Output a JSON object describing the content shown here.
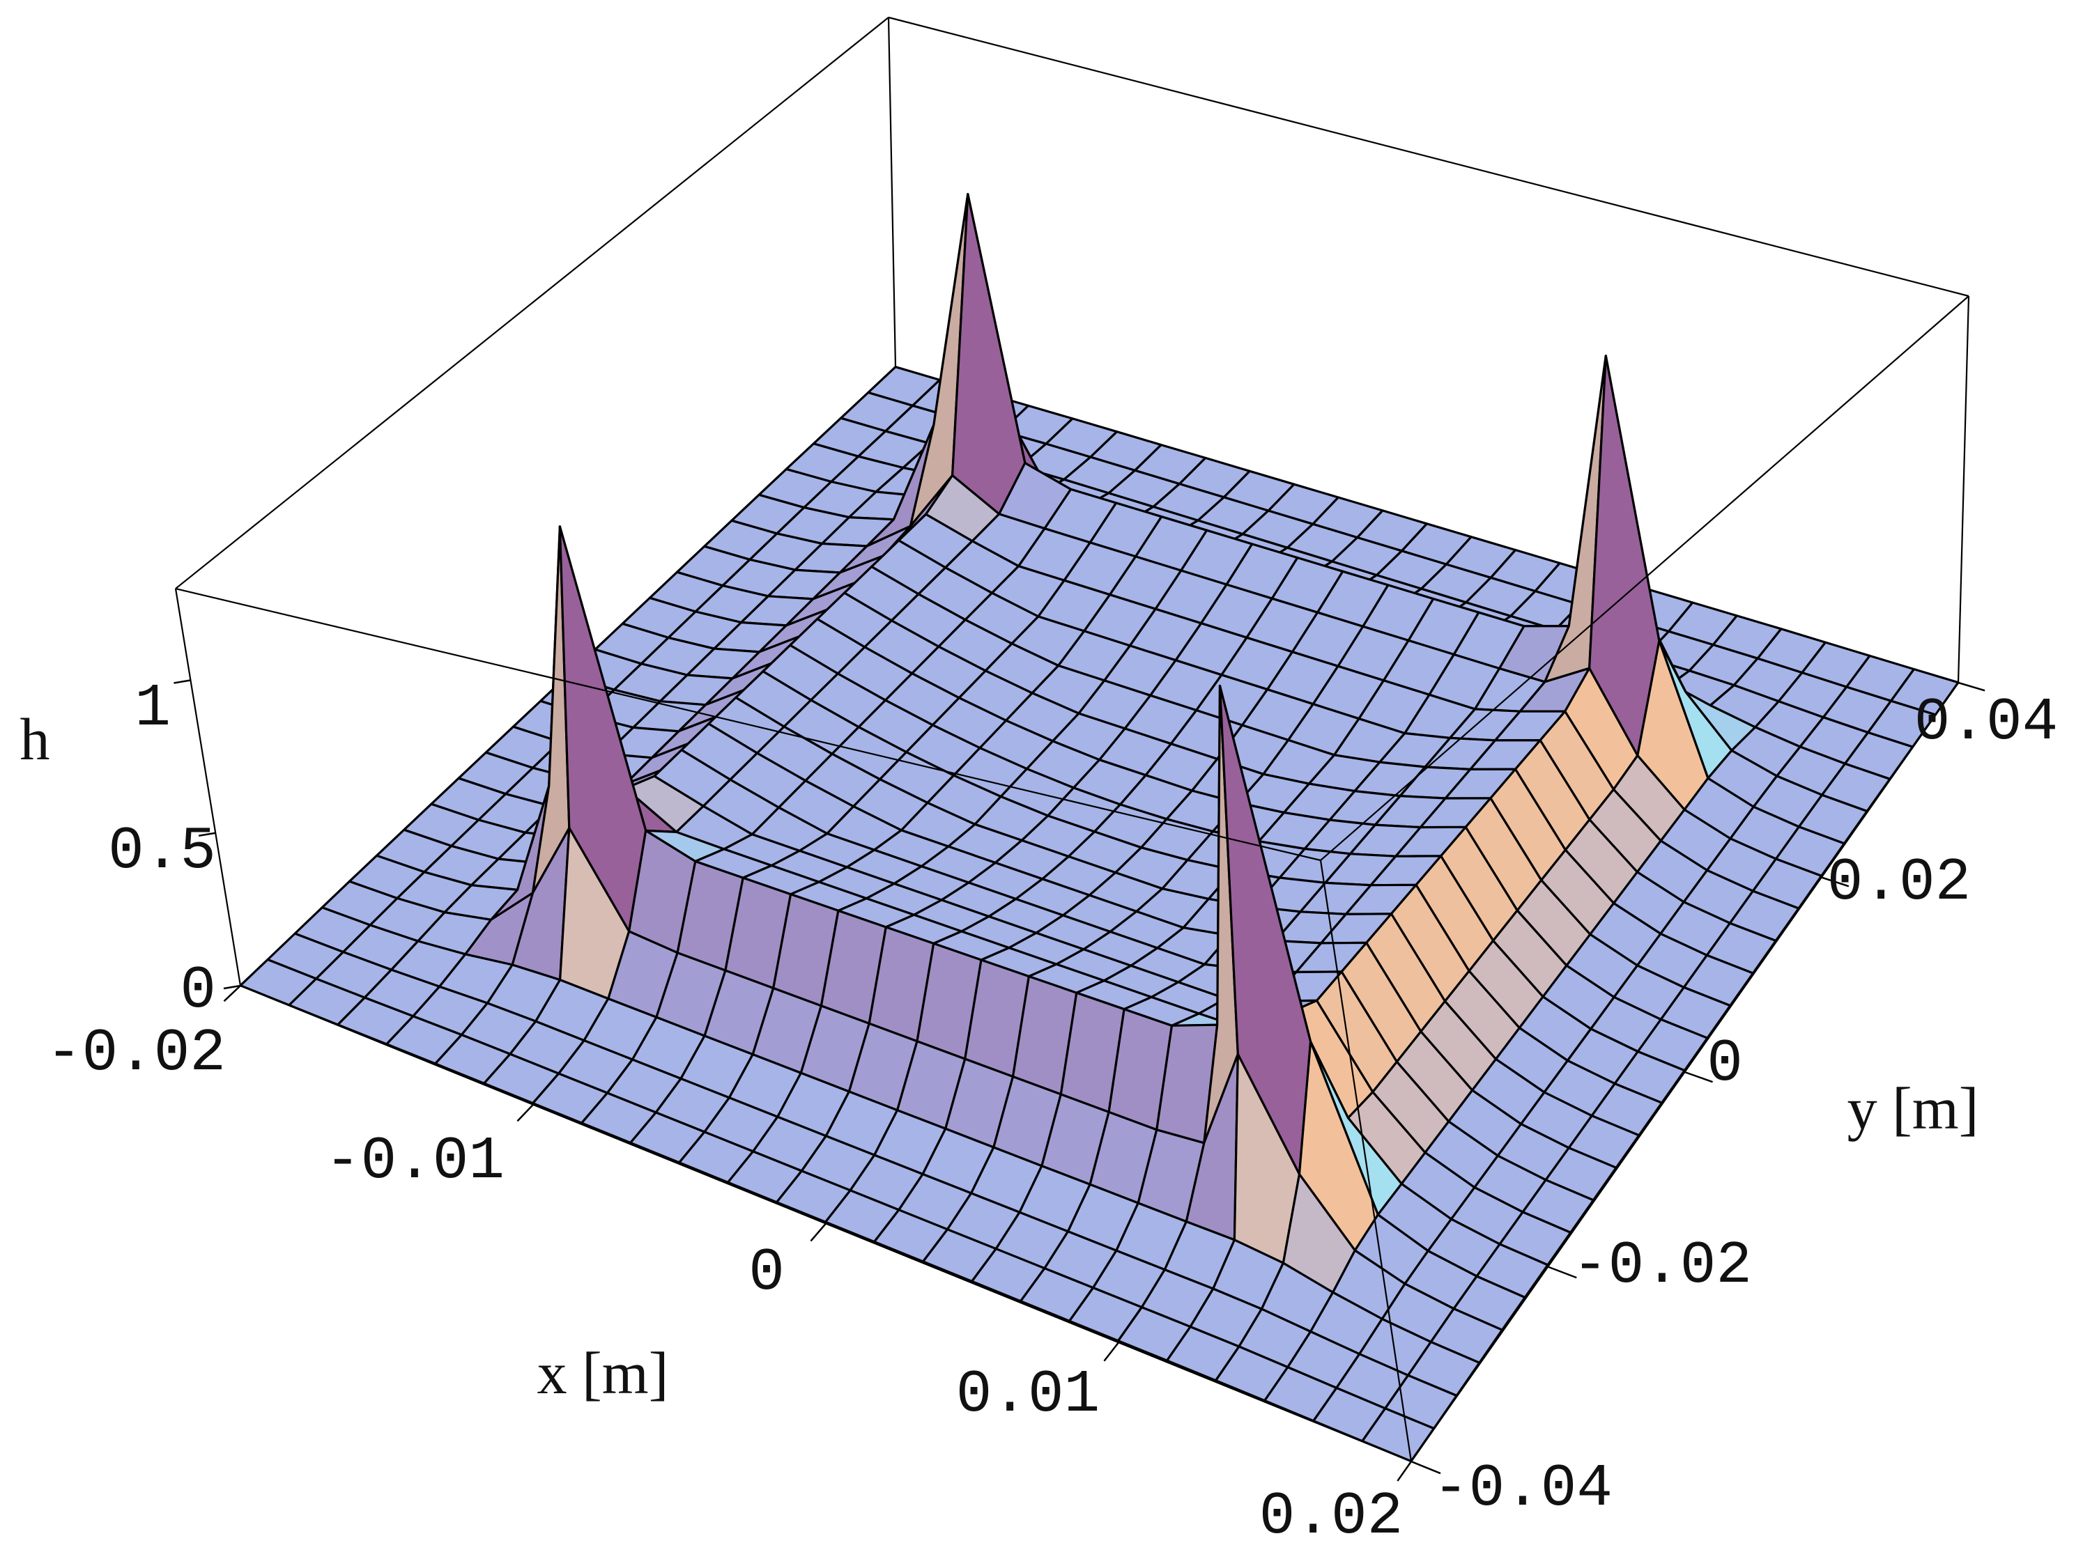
{
  "chart_data": {
    "type": "surface3d",
    "title": "",
    "xlabel": "x [m]",
    "ylabel": "y [m]",
    "zlabel": "h",
    "xlim": [
      -0.02,
      0.02
    ],
    "ylim": [
      -0.04,
      0.04
    ],
    "zlim": [
      0,
      1.3
    ],
    "x_ticks": [
      "-0.02",
      "-0.01",
      "0",
      "0.01",
      "0.02"
    ],
    "y_ticks": [
      "-0.04",
      "-0.02",
      "0",
      "0.02",
      "0.04"
    ],
    "z_ticks": [
      "0",
      "0.5",
      "1"
    ],
    "grid": "24x24 mesh",
    "base_level": 0.0,
    "plateau_level": 0.38,
    "plateau_region": {
      "x": [
        -0.012,
        0.012
      ],
      "y": [
        -0.024,
        0.024
      ]
    },
    "peaks": [
      {
        "x": -0.012,
        "y": -0.024,
        "h": 1.3
      },
      {
        "x": -0.012,
        "y": 0.024,
        "h": 1.3
      },
      {
        "x": 0.012,
        "y": 0.024,
        "h": 1.3
      },
      {
        "x": 0.012,
        "y": -0.024,
        "h": 1.3
      }
    ],
    "colors": {
      "surface_base": "#a6b4e8",
      "surface_cyan": "#a3ecf2",
      "peak_face": "#98619a",
      "peak_highlight": "#f4eaa8",
      "wall_orange": "#f2c19b",
      "mesh_line": "#000000"
    }
  }
}
